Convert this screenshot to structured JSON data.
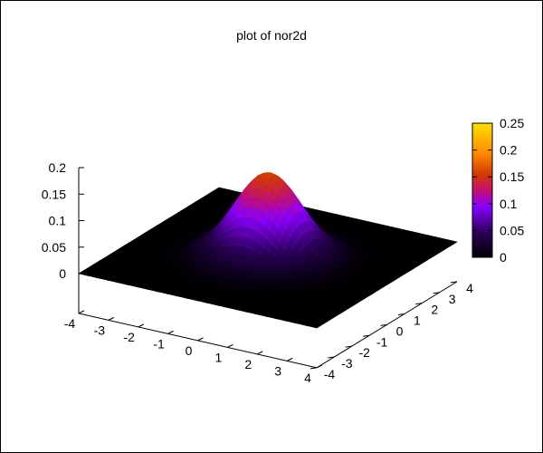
{
  "chart_data": {
    "type": "surface",
    "title": "plot of nor2d",
    "function": "exp(-(x^2+y^2)/2)/(2*pi)",
    "x_range": [
      -4,
      4
    ],
    "y_range": [
      -4,
      4
    ],
    "z_range": [
      0,
      0.25
    ],
    "x_ticks": [
      "-4",
      "-3",
      "-2",
      "-1",
      "0",
      "1",
      "2",
      "3",
      "4"
    ],
    "y_ticks": [
      "-4",
      "-3",
      "-2",
      "-1",
      "0",
      "1",
      "2",
      "3",
      "4"
    ],
    "z_ticks": [
      "0",
      "0.05",
      "0.1",
      "0.15",
      "0.2"
    ],
    "colorbox_ticks": [
      "0",
      "0.05",
      "0.1",
      "0.15",
      "0.2",
      "0.25"
    ],
    "peak_value": 0.159,
    "palette": [
      "#000000",
      "#2a0058",
      "#8a00ff",
      "#c2106e",
      "#d23a00",
      "#ff8c00",
      "#ffe000"
    ],
    "colorbox": "right",
    "grid": false
  }
}
